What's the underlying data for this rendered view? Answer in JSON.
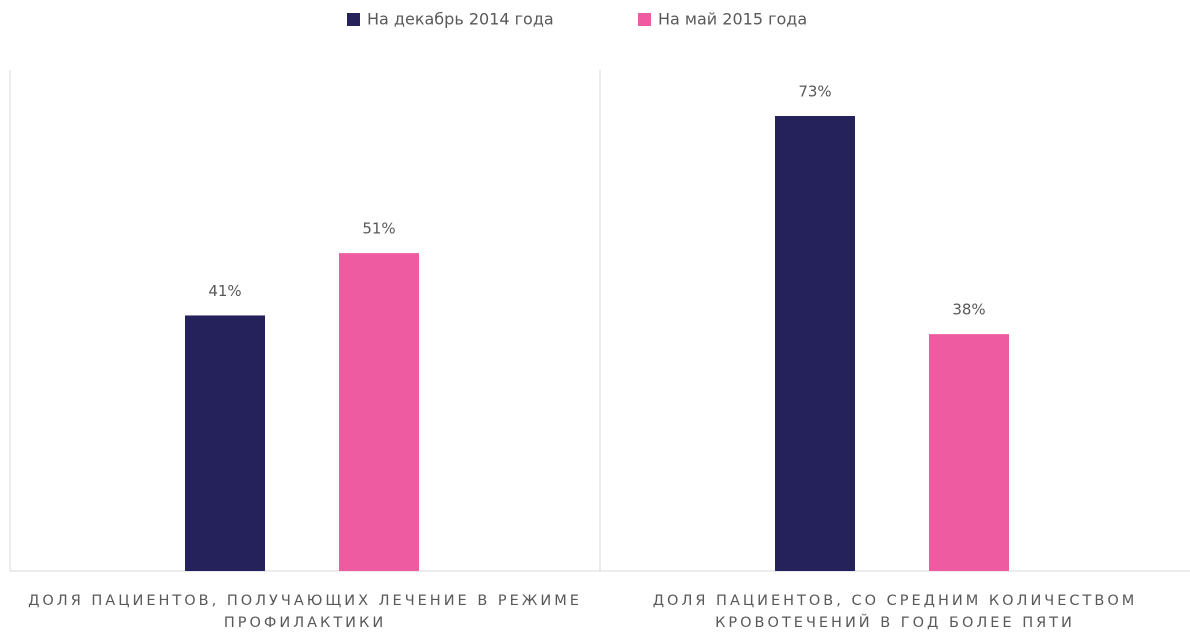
{
  "chart_data": {
    "type": "bar",
    "categories": [
      "ДОЛЯ ПАЦИЕНТОВ, ПОЛУЧАЮЩИХ ЛЕЧЕНИЕ В РЕЖИМЕ ПРОФИЛАКТИКИ",
      "ДОЛЯ ПАЦИЕНТОВ, СО СРЕДНИМ КОЛИЧЕСТВОМ КРОВОТЕЧЕНИЙ В ГОД БОЛЕЕ ПЯТИ"
    ],
    "series": [
      {
        "name": "На декабрь 2014 года",
        "color": "#25215a",
        "values": [
          41,
          73
        ],
        "value_labels": [
          "41%",
          "73%"
        ]
      },
      {
        "name": "На май 2015 года",
        "color": "#ef5ba1",
        "values": [
          51,
          38
        ],
        "value_labels": [
          "51%",
          "38%"
        ]
      }
    ],
    "legend": "top"
  }
}
